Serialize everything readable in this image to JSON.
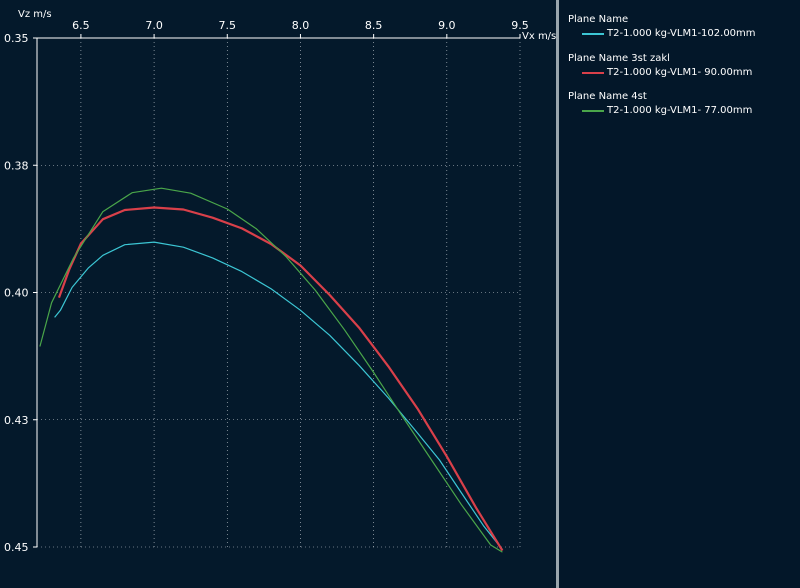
{
  "chart_data": {
    "type": "line",
    "xlabel": "Vx m/s",
    "ylabel": "Vz m/s",
    "xlim": [
      6.2,
      9.5
    ],
    "ylim": [
      0.35,
      0.45
    ],
    "y_inverted": true,
    "x_ticks": [
      "6.5",
      "7.0",
      "7.5",
      "8.0",
      "8.5",
      "9.0",
      "9.5"
    ],
    "y_ticks": [
      {
        "value": 0.35,
        "label": "0.35"
      },
      {
        "value": 0.375,
        "label": "0.38"
      },
      {
        "value": 0.4,
        "label": "0.40"
      },
      {
        "value": 0.425,
        "label": "0.43"
      },
      {
        "value": 0.45,
        "label": "0.45"
      }
    ],
    "grid": true,
    "legend_position": "right panel",
    "series": [
      {
        "group": "Plane Name",
        "name": "T2-1.000 kg-VLM1-102.00mm",
        "color": "#3cc6d4",
        "x": [
          6.32,
          6.36,
          6.44,
          6.55,
          6.65,
          6.8,
          7.0,
          7.2,
          7.4,
          7.6,
          7.8,
          8.0,
          8.2,
          8.4,
          8.6,
          8.8,
          8.95,
          9.1,
          9.25,
          9.38
        ],
        "y": [
          0.4049,
          0.4035,
          0.399,
          0.3952,
          0.3927,
          0.3906,
          0.3901,
          0.3911,
          0.3932,
          0.3959,
          0.3993,
          0.4035,
          0.4084,
          0.4143,
          0.4207,
          0.4276,
          0.4329,
          0.4394,
          0.4458,
          0.4505
        ]
      },
      {
        "group": "Plane Name 3st zakl",
        "name": "T2-1.000 kg-VLM1- 90.00mm",
        "color": "#d9404a",
        "x": [
          6.35,
          6.42,
          6.5,
          6.65,
          6.8,
          7.0,
          7.2,
          7.4,
          7.6,
          7.8,
          8.0,
          8.2,
          8.4,
          8.6,
          8.8,
          9.0,
          9.2,
          9.38
        ],
        "y": [
          0.401,
          0.3955,
          0.3904,
          0.3856,
          0.3838,
          0.3833,
          0.3837,
          0.3853,
          0.3874,
          0.3905,
          0.3947,
          0.4005,
          0.4069,
          0.4145,
          0.4228,
          0.4322,
          0.4423,
          0.4507
        ]
      },
      {
        "group": "Plane Name 4st",
        "name": "T2-1.000 kg-VLM1- 77.00mm",
        "color": "#4aa64a",
        "x": [
          6.22,
          6.3,
          6.45,
          6.65,
          6.85,
          7.05,
          7.25,
          7.5,
          7.7,
          7.9,
          8.1,
          8.3,
          8.5,
          8.7,
          8.9,
          9.1,
          9.3,
          9.38
        ],
        "y": [
          0.4106,
          0.402,
          0.3932,
          0.3841,
          0.3804,
          0.3795,
          0.3805,
          0.3836,
          0.3875,
          0.3929,
          0.3995,
          0.4073,
          0.4157,
          0.4245,
          0.4331,
          0.4417,
          0.4496,
          0.451
        ]
      }
    ]
  }
}
